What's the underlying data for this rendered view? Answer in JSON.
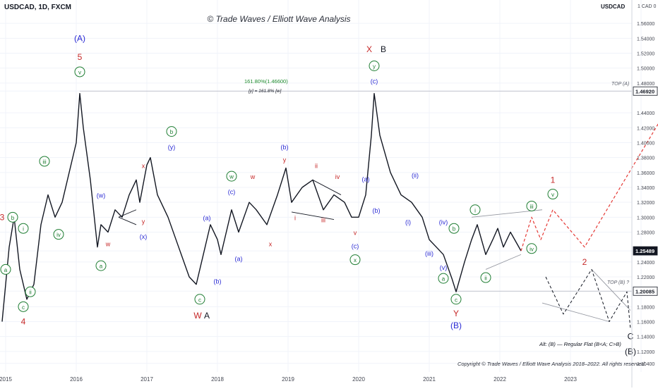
{
  "header": {
    "symbol": "USDCAD, 1D, FXCM",
    "watermark": "© Trade Waves / Elliott Wave Analysis",
    "symbol_tag": "USDCAD",
    "currency_tag": "1 CAD 0"
  },
  "footer": {
    "copyright": "Copyright © Trade Waves / Elliott Wave Analysis 2018–2022. All rights reserved.",
    "alt_note": "Alt: (B) — Regular Flat (B<A; C>B)"
  },
  "annotations": {
    "fib_label": "161.80%(1.46600)",
    "fib_sub": "[y] = 161.8% [w]",
    "top_a": "TOP (A)",
    "top_b": "TOP (B) ?"
  },
  "colors": {
    "price": "#131722",
    "blue": "#2a2ad4",
    "red": "#c62828",
    "green": "#1e7d32",
    "black": "#131722",
    "projection_red": "#e53935",
    "current_price_badge": "#131722"
  },
  "chart_data": {
    "type": "line",
    "title": "USDCAD, 1D, FXCM",
    "x_ticks": [
      "2015",
      "2016",
      "2017",
      "2018",
      "2019",
      "2020",
      "2021",
      "2022",
      "2023",
      "2024"
    ],
    "y_ticks": [
      "1.56000",
      "1.54000",
      "1.52000",
      "1.50000",
      "1.48000",
      "1.46920",
      "1.44000",
      "1.42000",
      "1.40000",
      "1.38000",
      "1.36000",
      "1.34000",
      "1.32000",
      "1.30000",
      "1.28000",
      "1.25489",
      "1.24000",
      "1.22000",
      "1.20085",
      "1.18000",
      "1.16000",
      "1.14000",
      "1.12000",
      "1.10400"
    ],
    "ylim": [
      1.1,
      1.58
    ],
    "highlighted_levels": [
      {
        "value": 1.4692,
        "label": "1.46920",
        "kind": "level"
      },
      {
        "value": 1.25489,
        "label": "1.25489",
        "kind": "current"
      },
      {
        "value": 1.20085,
        "label": "1.20085",
        "kind": "level"
      }
    ],
    "series": [
      {
        "key": "price",
        "style": "solid",
        "points": [
          [
            2014.95,
            1.16
          ],
          [
            2015.05,
            1.26
          ],
          [
            2015.12,
            1.3
          ],
          [
            2015.2,
            1.23
          ],
          [
            2015.3,
            1.19
          ],
          [
            2015.4,
            1.21
          ],
          [
            2015.5,
            1.29
          ],
          [
            2015.6,
            1.33
          ],
          [
            2015.7,
            1.3
          ],
          [
            2015.8,
            1.32
          ],
          [
            2015.9,
            1.36
          ],
          [
            2016.0,
            1.4
          ],
          [
            2016.05,
            1.466
          ],
          [
            2016.1,
            1.42
          ],
          [
            2016.2,
            1.35
          ],
          [
            2016.3,
            1.26
          ],
          [
            2016.35,
            1.29
          ],
          [
            2016.45,
            1.28
          ],
          [
            2016.55,
            1.31
          ],
          [
            2016.65,
            1.3
          ],
          [
            2016.75,
            1.33
          ],
          [
            2016.85,
            1.35
          ],
          [
            2016.9,
            1.32
          ],
          [
            2017.0,
            1.37
          ],
          [
            2017.05,
            1.38
          ],
          [
            2017.15,
            1.33
          ],
          [
            2017.3,
            1.3
          ],
          [
            2017.45,
            1.26
          ],
          [
            2017.6,
            1.22
          ],
          [
            2017.7,
            1.21
          ],
          [
            2017.8,
            1.25
          ],
          [
            2017.9,
            1.29
          ],
          [
            2018.0,
            1.27
          ],
          [
            2018.05,
            1.25
          ],
          [
            2018.1,
            1.27
          ],
          [
            2018.2,
            1.31
          ],
          [
            2018.3,
            1.28
          ],
          [
            2018.45,
            1.32
          ],
          [
            2018.55,
            1.31
          ],
          [
            2018.7,
            1.29
          ],
          [
            2018.85,
            1.33
          ],
          [
            2018.97,
            1.366
          ],
          [
            2019.05,
            1.32
          ],
          [
            2019.2,
            1.34
          ],
          [
            2019.35,
            1.35
          ],
          [
            2019.5,
            1.31
          ],
          [
            2019.65,
            1.33
          ],
          [
            2019.8,
            1.32
          ],
          [
            2019.9,
            1.3
          ],
          [
            2020.0,
            1.3
          ],
          [
            2020.1,
            1.33
          ],
          [
            2020.18,
            1.41
          ],
          [
            2020.22,
            1.466
          ],
          [
            2020.3,
            1.41
          ],
          [
            2020.45,
            1.36
          ],
          [
            2020.6,
            1.33
          ],
          [
            2020.75,
            1.32
          ],
          [
            2020.9,
            1.3
          ],
          [
            2021.0,
            1.27
          ],
          [
            2021.1,
            1.26
          ],
          [
            2021.2,
            1.25
          ],
          [
            2021.32,
            1.218
          ],
          [
            2021.38,
            1.2
          ],
          [
            2021.5,
            1.24
          ],
          [
            2021.6,
            1.27
          ],
          [
            2021.68,
            1.29
          ],
          [
            2021.8,
            1.25
          ],
          [
            2021.9,
            1.27
          ],
          [
            2021.97,
            1.285
          ],
          [
            2022.05,
            1.26
          ],
          [
            2022.15,
            1.28
          ],
          [
            2022.3,
            1.25489
          ]
        ]
      },
      {
        "key": "projection_main",
        "style": "dashed-red",
        "points": [
          [
            2022.3,
            1.25489
          ],
          [
            2022.45,
            1.3
          ],
          [
            2022.58,
            1.27
          ],
          [
            2022.75,
            1.31
          ],
          [
            2023.2,
            1.26
          ],
          [
            2024.5,
            1.466
          ]
        ]
      },
      {
        "key": "projection_alt",
        "style": "dashed-black",
        "points": [
          [
            2022.65,
            1.22
          ],
          [
            2022.9,
            1.17
          ],
          [
            2023.3,
            1.23
          ],
          [
            2023.55,
            1.16
          ],
          [
            2023.8,
            1.2
          ],
          [
            2023.85,
            1.15
          ]
        ]
      }
    ],
    "wave_labels": [
      {
        "text": "(A)",
        "x": 2016.05,
        "y": 1.54,
        "color": "blue",
        "circle": false
      },
      {
        "text": "5",
        "x": 2016.05,
        "y": 1.515,
        "color": "red",
        "circle": false
      },
      {
        "text": "v",
        "x": 2016.05,
        "y": 1.495,
        "color": "green",
        "circle": true
      },
      {
        "text": "3",
        "x": 2014.95,
        "y": 1.3,
        "color": "red",
        "circle": false
      },
      {
        "text": "b",
        "x": 2015.1,
        "y": 1.3,
        "color": "green",
        "circle": true
      },
      {
        "text": "i",
        "x": 2015.25,
        "y": 1.285,
        "color": "green",
        "circle": true
      },
      {
        "text": "iii",
        "x": 2015.55,
        "y": 1.375,
        "color": "green",
        "circle": true
      },
      {
        "text": "iv",
        "x": 2015.75,
        "y": 1.277,
        "color": "green",
        "circle": true
      },
      {
        "text": "a",
        "x": 2015.0,
        "y": 1.23,
        "color": "green",
        "circle": true
      },
      {
        "text": "ii",
        "x": 2015.35,
        "y": 1.2,
        "color": "green",
        "circle": true
      },
      {
        "text": "c",
        "x": 2015.25,
        "y": 1.18,
        "color": "green",
        "circle": true
      },
      {
        "text": "4",
        "x": 2015.25,
        "y": 1.16,
        "color": "red",
        "circle": false
      },
      {
        "text": "(w)",
        "x": 2016.35,
        "y": 1.33,
        "color": "blue",
        "circle": false
      },
      {
        "text": "w",
        "x": 2016.45,
        "y": 1.265,
        "color": "red",
        "circle": false
      },
      {
        "text": "a",
        "x": 2016.35,
        "y": 1.235,
        "color": "green",
        "circle": true
      },
      {
        "text": "x",
        "x": 2016.95,
        "y": 1.37,
        "color": "red",
        "circle": false
      },
      {
        "text": "y",
        "x": 2016.95,
        "y": 1.295,
        "color": "red",
        "circle": false
      },
      {
        "text": "(x)",
        "x": 2016.95,
        "y": 1.275,
        "color": "blue",
        "circle": false
      },
      {
        "text": "b",
        "x": 2017.35,
        "y": 1.415,
        "color": "green",
        "circle": true
      },
      {
        "text": "(y)",
        "x": 2017.35,
        "y": 1.395,
        "color": "blue",
        "circle": false
      },
      {
        "text": "(a)",
        "x": 2017.85,
        "y": 1.3,
        "color": "blue",
        "circle": false
      },
      {
        "text": "c",
        "x": 2017.75,
        "y": 1.19,
        "color": "green",
        "circle": true
      },
      {
        "text": "W",
        "x": 2017.72,
        "y": 1.168,
        "color": "red",
        "circle": false
      },
      {
        "text": "A",
        "x": 2017.85,
        "y": 1.168,
        "color": "black",
        "circle": false
      },
      {
        "text": "(b)",
        "x": 2018.0,
        "y": 1.215,
        "color": "blue",
        "circle": false
      },
      {
        "text": "(a)",
        "x": 2018.3,
        "y": 1.245,
        "color": "blue",
        "circle": false
      },
      {
        "text": "w",
        "x": 2018.2,
        "y": 1.355,
        "color": "green",
        "circle": true
      },
      {
        "text": "(c)",
        "x": 2018.2,
        "y": 1.335,
        "color": "blue",
        "circle": false
      },
      {
        "text": "w",
        "x": 2018.5,
        "y": 1.355,
        "color": "red",
        "circle": false
      },
      {
        "text": "x",
        "x": 2018.75,
        "y": 1.265,
        "color": "red",
        "circle": false
      },
      {
        "text": "(b)",
        "x": 2018.95,
        "y": 1.395,
        "color": "blue",
        "circle": false
      },
      {
        "text": "y",
        "x": 2018.95,
        "y": 1.378,
        "color": "red",
        "circle": false
      },
      {
        "text": "ii",
        "x": 2019.4,
        "y": 1.37,
        "color": "red",
        "circle": false
      },
      {
        "text": "iv",
        "x": 2019.7,
        "y": 1.355,
        "color": "red",
        "circle": false
      },
      {
        "text": "i",
        "x": 2019.1,
        "y": 1.3,
        "color": "red",
        "circle": false
      },
      {
        "text": "iii",
        "x": 2019.5,
        "y": 1.297,
        "color": "red",
        "circle": false
      },
      {
        "text": "v",
        "x": 2019.95,
        "y": 1.28,
        "color": "red",
        "circle": false
      },
      {
        "text": "(c)",
        "x": 2019.95,
        "y": 1.262,
        "color": "blue",
        "circle": false
      },
      {
        "text": "x",
        "x": 2019.95,
        "y": 1.243,
        "color": "green",
        "circle": true
      },
      {
        "text": "(a)",
        "x": 2020.1,
        "y": 1.352,
        "color": "blue",
        "circle": false
      },
      {
        "text": "(b)",
        "x": 2020.25,
        "y": 1.31,
        "color": "blue",
        "circle": false
      },
      {
        "text": "X",
        "x": 2020.15,
        "y": 1.525,
        "color": "red",
        "circle": false
      },
      {
        "text": "B",
        "x": 2020.35,
        "y": 1.525,
        "color": "black",
        "circle": false
      },
      {
        "text": "y",
        "x": 2020.22,
        "y": 1.503,
        "color": "green",
        "circle": true
      },
      {
        "text": "(c)",
        "x": 2020.22,
        "y": 1.483,
        "color": "blue",
        "circle": false
      },
      {
        "text": "(ii)",
        "x": 2020.8,
        "y": 1.357,
        "color": "blue",
        "circle": false
      },
      {
        "text": "(i)",
        "x": 2020.7,
        "y": 1.294,
        "color": "blue",
        "circle": false
      },
      {
        "text": "(iv)",
        "x": 2021.2,
        "y": 1.294,
        "color": "blue",
        "circle": false
      },
      {
        "text": "b",
        "x": 2021.35,
        "y": 1.285,
        "color": "green",
        "circle": true
      },
      {
        "text": "(iii)",
        "x": 2021.0,
        "y": 1.252,
        "color": "blue",
        "circle": false
      },
      {
        "text": "(v)",
        "x": 2021.2,
        "y": 1.233,
        "color": "blue",
        "circle": false
      },
      {
        "text": "a",
        "x": 2021.2,
        "y": 1.218,
        "color": "green",
        "circle": true
      },
      {
        "text": "c",
        "x": 2021.38,
        "y": 1.19,
        "color": "green",
        "circle": true
      },
      {
        "text": "Y",
        "x": 2021.38,
        "y": 1.171,
        "color": "red",
        "circle": false
      },
      {
        "text": "(B)",
        "x": 2021.38,
        "y": 1.155,
        "color": "blue",
        "circle": false
      },
      {
        "text": "i",
        "x": 2021.65,
        "y": 1.31,
        "color": "green",
        "circle": true
      },
      {
        "text": "ii",
        "x": 2021.8,
        "y": 1.219,
        "color": "green",
        "circle": true
      },
      {
        "text": "iii",
        "x": 2022.45,
        "y": 1.315,
        "color": "green",
        "circle": true
      },
      {
        "text": "iv",
        "x": 2022.45,
        "y": 1.258,
        "color": "green",
        "circle": true
      },
      {
        "text": "1",
        "x": 2022.75,
        "y": 1.35,
        "color": "red",
        "circle": false
      },
      {
        "text": "v",
        "x": 2022.75,
        "y": 1.331,
        "color": "green",
        "circle": true
      },
      {
        "text": "2",
        "x": 2023.2,
        "y": 1.24,
        "color": "red",
        "circle": false
      },
      {
        "text": "I",
        "x": 2024.65,
        "y": 1.56,
        "color": "red",
        "circle": false
      },
      {
        "text": "Y",
        "x": 2024.65,
        "y": 1.535,
        "color": "green",
        "circle": true
      },
      {
        "text": "(C)",
        "x": 2024.65,
        "y": 1.513,
        "color": "blue",
        "circle": false
      },
      {
        "text": "3",
        "x": 2024.45,
        "y": 1.49,
        "color": "red",
        "circle": false
      },
      {
        "text": "C",
        "x": 2023.85,
        "y": 1.14,
        "color": "black",
        "circle": false
      },
      {
        "text": "(B)",
        "x": 2023.85,
        "y": 1.12,
        "color": "black",
        "circle": false
      }
    ],
    "trend_lines": [
      {
        "style": "solid-grey",
        "points": [
          [
            2021.6,
            1.3
          ],
          [
            2022.6,
            1.31
          ]
        ]
      },
      {
        "style": "solid-grey",
        "points": [
          [
            2021.8,
            1.23
          ],
          [
            2022.3,
            1.25
          ]
        ]
      },
      {
        "style": "solid-grey",
        "points": [
          [
            2022.6,
            1.185
          ],
          [
            2023.55,
            1.16
          ]
        ]
      },
      {
        "style": "solid-grey",
        "points": [
          [
            2023.3,
            1.23
          ],
          [
            2023.85,
            1.175
          ]
        ]
      },
      {
        "style": "solid-black",
        "points": [
          [
            2016.6,
            1.3
          ],
          [
            2016.85,
            1.31
          ]
        ]
      },
      {
        "style": "solid-black",
        "points": [
          [
            2019.05,
            1.307
          ],
          [
            2019.65,
            1.297
          ]
        ]
      },
      {
        "style": "solid-black",
        "points": [
          [
            2019.35,
            1.35
          ],
          [
            2019.75,
            1.33
          ]
        ]
      },
      {
        "style": "solid-black",
        "points": [
          [
            2016.6,
            1.3
          ],
          [
            2016.85,
            1.29
          ]
        ]
      }
    ],
    "horizontal_levels": [
      {
        "value": 1.4692,
        "from": 2016.05,
        "to": 2025.1,
        "style": "grey"
      },
      {
        "value": 1.2009,
        "from": 2021.38,
        "to": 2025.1,
        "style": "grey"
      }
    ]
  }
}
